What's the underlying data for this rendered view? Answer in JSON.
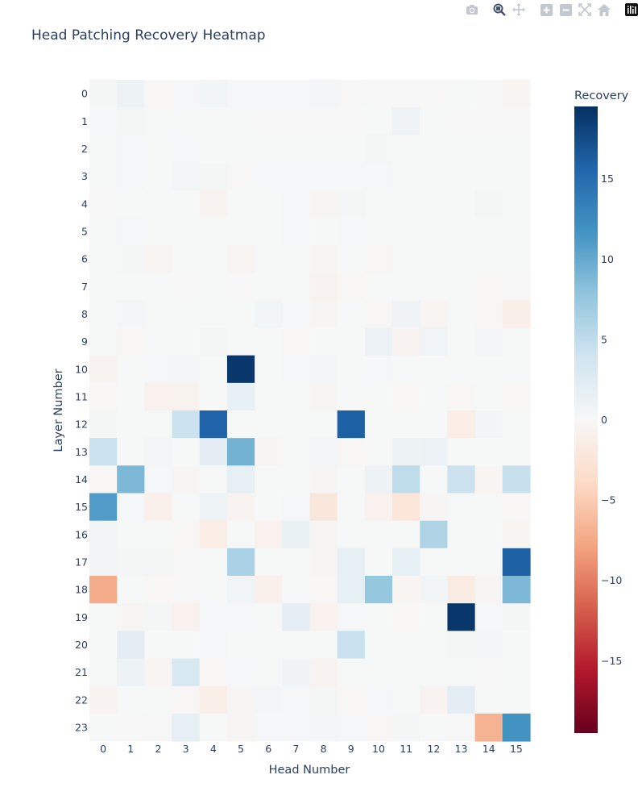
{
  "chart_data": {
    "type": "heatmap",
    "title": "Head Patching Recovery Heatmap",
    "xlabel": "Head Number",
    "ylabel": "Layer Number",
    "colorbar_title": "Recovery",
    "x": [
      0,
      1,
      2,
      3,
      4,
      5,
      6,
      7,
      8,
      9,
      10,
      11,
      12,
      13,
      14,
      15
    ],
    "y": [
      0,
      1,
      2,
      3,
      4,
      5,
      6,
      7,
      8,
      9,
      10,
      11,
      12,
      13,
      14,
      15,
      16,
      17,
      18,
      19,
      20,
      21,
      22,
      23
    ],
    "zmin": -19.5,
    "zmax": 19.5,
    "colorbar_ticks": [
      15,
      10,
      5,
      0,
      -5,
      -10,
      -15
    ],
    "colorbar_tick_labels": [
      "15",
      "10",
      "5",
      "0",
      "−5",
      "−10",
      "−15"
    ],
    "colorscale": "RdBu",
    "z": [
      [
        0.3,
        1.0,
        -0.2,
        0.2,
        0.5,
        0.2,
        0.2,
        0.2,
        0.4,
        -0.1,
        0.0,
        0.0,
        0.0,
        0.1,
        -0.1,
        -0.4
      ],
      [
        0.2,
        0.3,
        0.1,
        0.1,
        0.1,
        0.1,
        0.0,
        0.0,
        0.0,
        0.0,
        0.1,
        0.8,
        0.1,
        0.0,
        0.0,
        0.0
      ],
      [
        0.1,
        0.2,
        0.1,
        0.2,
        0.1,
        0.1,
        0.1,
        0.1,
        0.1,
        0.1,
        0.3,
        0.1,
        0.1,
        0.1,
        0.1,
        0.1
      ],
      [
        0.1,
        0.2,
        0.1,
        0.4,
        0.3,
        -0.1,
        0.2,
        0.2,
        0.2,
        0.2,
        0.2,
        0.1,
        0.1,
        0.1,
        0.1,
        0.1
      ],
      [
        0.0,
        0.1,
        0.1,
        0.1,
        -0.5,
        0.1,
        0.1,
        0.2,
        -0.3,
        0.3,
        0.1,
        0.1,
        0.1,
        0.1,
        0.3,
        0.1
      ],
      [
        0.1,
        0.2,
        0.1,
        0.1,
        0.1,
        0.1,
        0.1,
        0.2,
        0.1,
        0.2,
        0.1,
        0.1,
        0.1,
        0.1,
        0.1,
        0.1
      ],
      [
        0.1,
        0.3,
        -0.4,
        0.1,
        0.1,
        -0.4,
        0.1,
        0.1,
        -0.3,
        0.1,
        -0.2,
        0.1,
        0.1,
        0.1,
        0.1,
        0.1
      ],
      [
        0.1,
        0.1,
        0.1,
        0.0,
        0.1,
        0.0,
        0.1,
        0.1,
        -0.6,
        -0.2,
        0.1,
        0.1,
        0.1,
        0.1,
        -0.2,
        -0.1
      ],
      [
        0.1,
        0.4,
        0.1,
        0.1,
        0.1,
        0.1,
        0.5,
        0.2,
        -0.3,
        0.1,
        -0.2,
        0.8,
        -0.4,
        0.1,
        -0.2,
        -1.2
      ],
      [
        0.1,
        -0.2,
        0.1,
        0.1,
        0.3,
        0.1,
        0.1,
        -0.2,
        0.1,
        0.1,
        1.2,
        -0.5,
        0.7,
        0.1,
        0.4,
        0.1
      ],
      [
        -0.6,
        0.1,
        0.2,
        0.4,
        0.1,
        19.0,
        0.1,
        0.2,
        0.4,
        0.1,
        0.2,
        0.1,
        0.1,
        0.1,
        0.1,
        0.1
      ],
      [
        -0.2,
        0.1,
        -0.8,
        -0.7,
        0.1,
        1.6,
        0.1,
        0.1,
        -0.3,
        0.1,
        0.1,
        -0.2,
        0.1,
        -0.2,
        0.1,
        -0.2
      ],
      [
        0.3,
        0.1,
        0.1,
        4.2,
        15.8,
        0.1,
        0.1,
        0.1,
        0.1,
        16.0,
        0.1,
        0.1,
        0.1,
        -1.4,
        0.5,
        0.1
      ],
      [
        4.2,
        0.1,
        0.4,
        0.1,
        2.1,
        9.3,
        -0.3,
        0.1,
        0.4,
        -0.2,
        0.1,
        1.0,
        1.2,
        0.1,
        0.1,
        0.1
      ],
      [
        -0.2,
        8.8,
        0.2,
        -0.3,
        0.1,
        1.7,
        0.1,
        0.1,
        -0.3,
        0.1,
        1.0,
        5.0,
        0.1,
        4.2,
        -0.4,
        4.5
      ],
      [
        11.0,
        0.2,
        -1.0,
        0.1,
        0.9,
        -0.6,
        0.1,
        0.2,
        -2.2,
        0.1,
        -0.8,
        -2.4,
        -0.3,
        0.1,
        0.1,
        -0.2
      ],
      [
        0.5,
        0.1,
        0.1,
        -0.2,
        -1.4,
        0.1,
        -0.8,
        1.4,
        -0.3,
        0.1,
        0.1,
        0.1,
        6.0,
        0.1,
        0.1,
        -0.4
      ],
      [
        0.5,
        0.3,
        0.3,
        -0.1,
        0.1,
        6.3,
        0.1,
        0.1,
        -0.3,
        1.8,
        0.1,
        1.8,
        0.1,
        0.1,
        0.1,
        16.0
      ],
      [
        -7.3,
        0.1,
        -0.2,
        -0.1,
        0.1,
        0.6,
        -1.0,
        0.1,
        -0.2,
        1.7,
        7.6,
        -0.4,
        0.5,
        -1.6,
        -0.3,
        8.8
      ],
      [
        0.1,
        -0.3,
        0.3,
        -0.8,
        0.2,
        0.2,
        0.1,
        1.9,
        -0.8,
        0.2,
        0.1,
        -0.2,
        0.1,
        19.0,
        0.2,
        0.3
      ],
      [
        0.1,
        2.1,
        0.1,
        0.1,
        0.2,
        0.1,
        0.1,
        0.1,
        0.1,
        4.4,
        0.1,
        0.1,
        0.1,
        0.3,
        0.4,
        0.1
      ],
      [
        0.1,
        1.1,
        -0.4,
        3.2,
        -0.2,
        0.2,
        0.1,
        0.8,
        -0.5,
        0.1,
        0.1,
        0.1,
        0.1,
        0.1,
        -0.1,
        0.1
      ],
      [
        -0.6,
        0.1,
        0.1,
        -0.2,
        -1.2,
        -0.3,
        0.4,
        0.2,
        0.3,
        -0.2,
        0.2,
        0.1,
        -0.6,
        2.1,
        0.1,
        0.1
      ],
      [
        0.1,
        0.0,
        -0.1,
        1.8,
        0.1,
        -0.3,
        0.2,
        0.2,
        0.4,
        0.2,
        -0.2,
        0.3,
        0.1,
        -0.1,
        -6.8,
        11.8
      ]
    ]
  },
  "modebar": {
    "buttons": [
      {
        "name": "camera-icon"
      },
      {
        "name": "zoom-icon"
      },
      {
        "name": "pan-icon"
      },
      {
        "name": "zoom-in-icon"
      },
      {
        "name": "zoom-out-icon"
      },
      {
        "name": "autoscale-icon"
      },
      {
        "name": "reset-axes-icon"
      },
      {
        "name": "plotly-logo-icon"
      }
    ]
  }
}
